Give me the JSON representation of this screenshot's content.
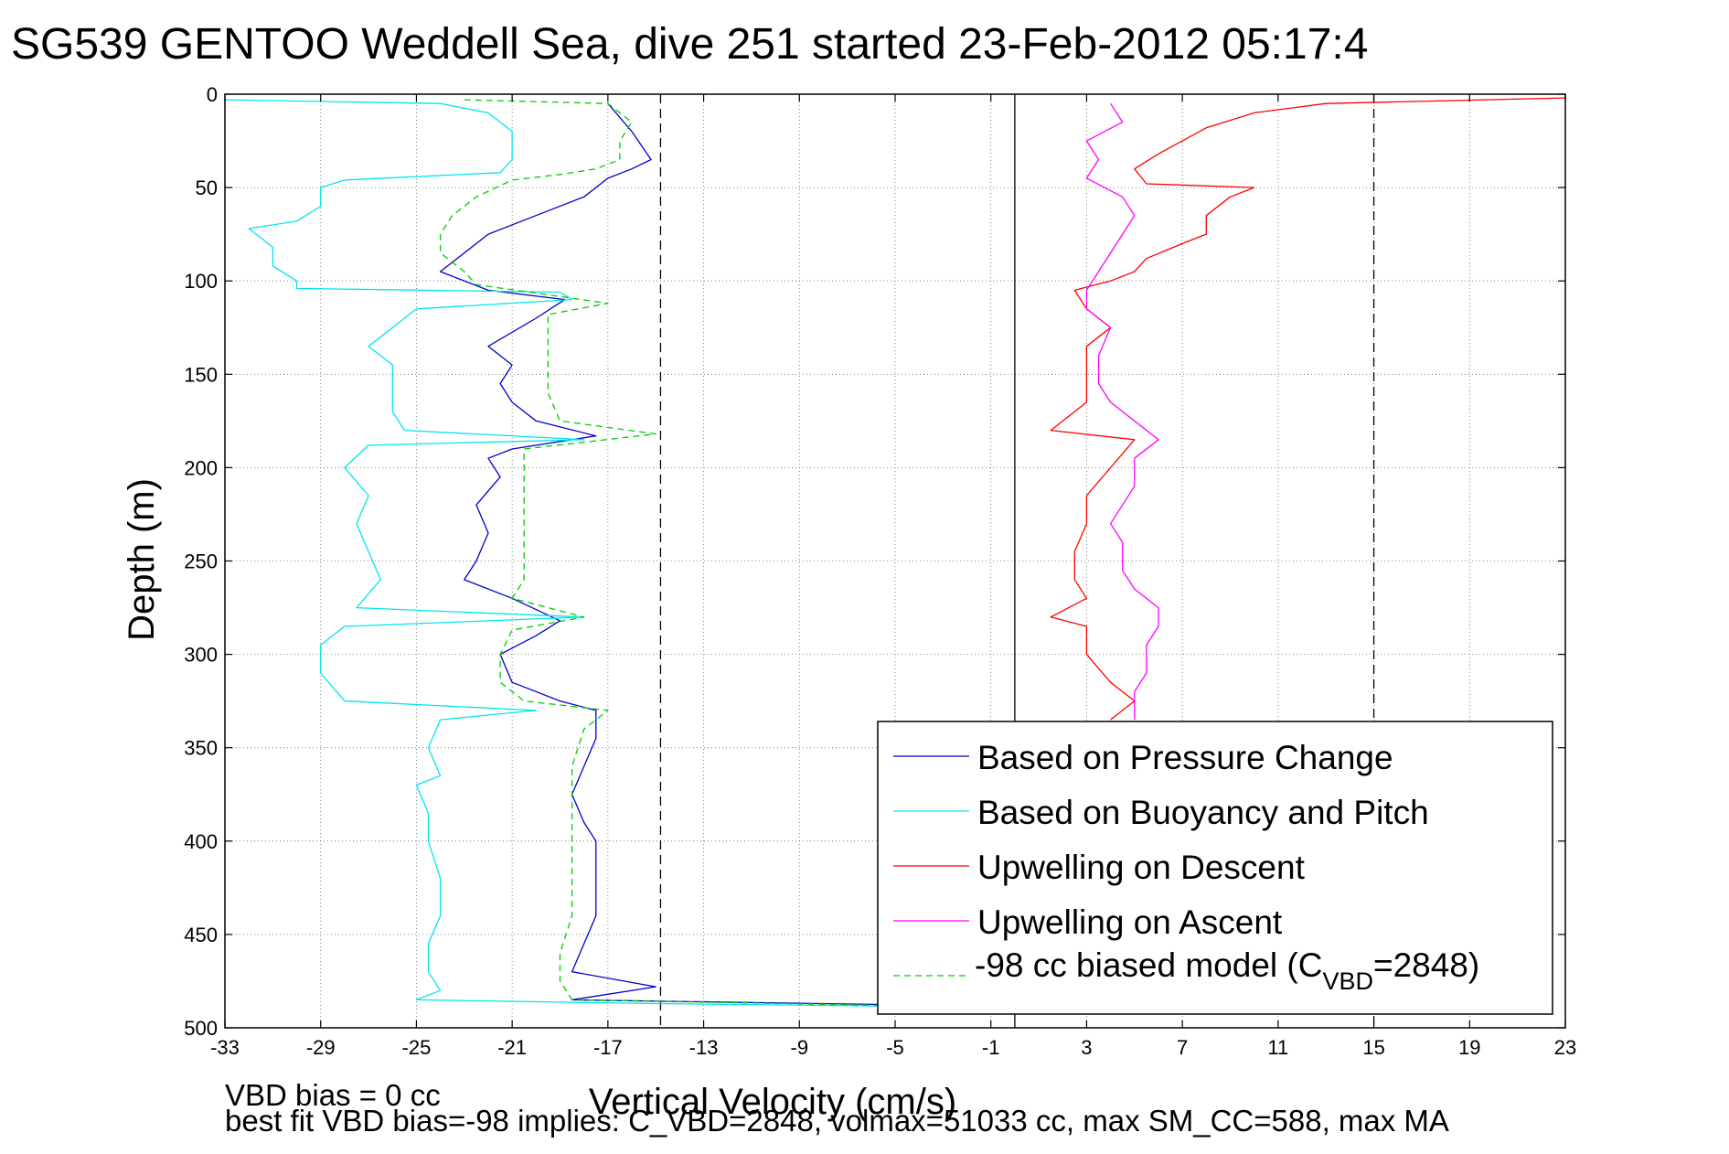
{
  "chart_data": {
    "type": "line",
    "title": "SG539 GENTOO Weddell Sea, dive 251 started 23-Feb-2012 05:17:4",
    "xlabel": "Vertical Velocity (cm/s)",
    "ylabel": "Depth (m)",
    "xlim": [
      -33,
      23
    ],
    "ylim": [
      0,
      500
    ],
    "y_reversed": true,
    "xticks": [
      -33,
      -29,
      -25,
      -21,
      -17,
      -13,
      -9,
      -5,
      -1,
      3,
      7,
      11,
      15,
      19,
      23
    ],
    "yticks": [
      0,
      50,
      100,
      150,
      200,
      250,
      300,
      350,
      400,
      450,
      500
    ],
    "grid": true,
    "legend_position": "bottom-right",
    "reference_lines": [
      {
        "x": -14.8,
        "style": "dashed",
        "color": "#000000"
      },
      {
        "x": 15,
        "style": "dashed",
        "color": "#000000"
      },
      {
        "x": 0,
        "style": "solid",
        "color": "#000000"
      }
    ],
    "series": [
      {
        "name": "Based on Pressure Change",
        "color": "#0000cc",
        "style": "solid",
        "points": [
          [
            -17,
            5
          ],
          [
            -16,
            20
          ],
          [
            -15.2,
            35
          ],
          [
            -16,
            40
          ],
          [
            -17,
            45
          ],
          [
            -18,
            55
          ],
          [
            -20,
            65
          ],
          [
            -22,
            75
          ],
          [
            -23,
            85
          ],
          [
            -24,
            95
          ],
          [
            -22,
            105
          ],
          [
            -18.8,
            110
          ],
          [
            -20,
            120
          ],
          [
            -22,
            135
          ],
          [
            -21,
            145
          ],
          [
            -21.5,
            155
          ],
          [
            -21,
            165
          ],
          [
            -20,
            175
          ],
          [
            -17.5,
            183
          ],
          [
            -21,
            190
          ],
          [
            -22,
            195
          ],
          [
            -21.5,
            205
          ],
          [
            -22.5,
            220
          ],
          [
            -22,
            235
          ],
          [
            -22.5,
            250
          ],
          [
            -23,
            260
          ],
          [
            -21,
            270
          ],
          [
            -19,
            282
          ],
          [
            -20,
            290
          ],
          [
            -21.5,
            300
          ],
          [
            -21,
            315
          ],
          [
            -19,
            325
          ],
          [
            -17.5,
            330
          ],
          [
            -17.5,
            345
          ],
          [
            -18,
            360
          ],
          [
            -18.5,
            375
          ],
          [
            -18,
            390
          ],
          [
            -17.5,
            400
          ],
          [
            -17.5,
            420
          ],
          [
            -17.5,
            440
          ],
          [
            -18,
            455
          ],
          [
            -18.5,
            470
          ],
          [
            -15,
            478
          ],
          [
            -18.5,
            485
          ],
          [
            -3,
            488
          ]
        ]
      },
      {
        "name": "Based on Buoyancy and Pitch",
        "color": "#00e5ee",
        "style": "solid",
        "points": [
          [
            -33,
            3
          ],
          [
            -24,
            5
          ],
          [
            -22,
            10
          ],
          [
            -21,
            20
          ],
          [
            -21,
            35
          ],
          [
            -21.5,
            42
          ],
          [
            -28,
            46
          ],
          [
            -29,
            50
          ],
          [
            -29,
            60
          ],
          [
            -30,
            68
          ],
          [
            -32,
            72
          ],
          [
            -31,
            82
          ],
          [
            -31,
            92
          ],
          [
            -30,
            100
          ],
          [
            -30,
            104
          ],
          [
            -19,
            106
          ],
          [
            -18.5,
            110
          ],
          [
            -25,
            115
          ],
          [
            -26,
            125
          ],
          [
            -27,
            135
          ],
          [
            -26,
            145
          ],
          [
            -26,
            160
          ],
          [
            -26,
            170
          ],
          [
            -25.5,
            180
          ],
          [
            -18,
            185
          ],
          [
            -27,
            188
          ],
          [
            -28,
            200
          ],
          [
            -27,
            215
          ],
          [
            -27.5,
            230
          ],
          [
            -27,
            245
          ],
          [
            -26.5,
            260
          ],
          [
            -27.5,
            275
          ],
          [
            -18,
            280
          ],
          [
            -28,
            285
          ],
          [
            -29,
            295
          ],
          [
            -29,
            310
          ],
          [
            -28,
            325
          ],
          [
            -20,
            330
          ],
          [
            -24,
            335
          ],
          [
            -24.5,
            350
          ],
          [
            -24,
            365
          ],
          [
            -25,
            370
          ],
          [
            -24.5,
            385
          ],
          [
            -24.5,
            400
          ],
          [
            -24,
            420
          ],
          [
            -24,
            440
          ],
          [
            -24.5,
            455
          ],
          [
            -24.5,
            470
          ],
          [
            -24,
            480
          ],
          [
            -25,
            485
          ],
          [
            -15,
            487
          ],
          [
            -1,
            489
          ]
        ]
      },
      {
        "name": "Upwelling on Descent",
        "color": "#ff0000",
        "style": "solid",
        "points": [
          [
            23,
            2
          ],
          [
            13,
            5
          ],
          [
            10,
            10
          ],
          [
            8,
            18
          ],
          [
            7,
            25
          ],
          [
            6,
            32
          ],
          [
            5,
            40
          ],
          [
            5.5,
            48
          ],
          [
            10,
            50
          ],
          [
            9,
            55
          ],
          [
            8,
            65
          ],
          [
            8,
            75
          ],
          [
            7,
            80
          ],
          [
            5.5,
            88
          ],
          [
            5,
            95
          ],
          [
            4,
            100
          ],
          [
            2.5,
            105
          ],
          [
            3,
            115
          ],
          [
            4,
            125
          ],
          [
            3,
            135
          ],
          [
            3,
            150
          ],
          [
            3,
            165
          ],
          [
            1.5,
            180
          ],
          [
            5,
            185
          ],
          [
            4,
            200
          ],
          [
            3,
            215
          ],
          [
            3,
            230
          ],
          [
            2.5,
            245
          ],
          [
            2.5,
            260
          ],
          [
            3,
            270
          ],
          [
            1.5,
            280
          ],
          [
            3,
            285
          ],
          [
            3,
            300
          ],
          [
            4,
            315
          ],
          [
            5,
            325
          ],
          [
            4,
            335
          ]
        ]
      },
      {
        "name": "Upwelling on Ascent",
        "color": "#ff00ff",
        "style": "solid",
        "points": [
          [
            4,
            5
          ],
          [
            4.5,
            15
          ],
          [
            3,
            25
          ],
          [
            3.5,
            35
          ],
          [
            3,
            45
          ],
          [
            4.5,
            55
          ],
          [
            5,
            65
          ],
          [
            4.5,
            75
          ],
          [
            4,
            85
          ],
          [
            3.5,
            95
          ],
          [
            3,
            105
          ],
          [
            3,
            115
          ],
          [
            4,
            125
          ],
          [
            3.5,
            140
          ],
          [
            3.5,
            155
          ],
          [
            4,
            165
          ],
          [
            5,
            175
          ],
          [
            6,
            185
          ],
          [
            5,
            195
          ],
          [
            5,
            210
          ],
          [
            4.5,
            220
          ],
          [
            4,
            230
          ],
          [
            4.5,
            240
          ],
          [
            4.5,
            255
          ],
          [
            5,
            265
          ],
          [
            6,
            275
          ],
          [
            6,
            285
          ],
          [
            5.5,
            295
          ],
          [
            5.5,
            310
          ],
          [
            5,
            320
          ],
          [
            5,
            335
          ]
        ]
      },
      {
        "name": "-98 cc biased model (C_VBD=2848)",
        "color": "#00cc00",
        "style": "dashed",
        "points": [
          [
            -23,
            3
          ],
          [
            -17,
            5
          ],
          [
            -16,
            15
          ],
          [
            -16.5,
            25
          ],
          [
            -16.5,
            35
          ],
          [
            -17.5,
            40
          ],
          [
            -19,
            43
          ],
          [
            -21,
            46
          ],
          [
            -22.5,
            55
          ],
          [
            -23.5,
            65
          ],
          [
            -24,
            75
          ],
          [
            -24,
            85
          ],
          [
            -23,
            95
          ],
          [
            -22.5,
            102
          ],
          [
            -17,
            112
          ],
          [
            -19.5,
            118
          ],
          [
            -19.5,
            130
          ],
          [
            -19.5,
            145
          ],
          [
            -19.5,
            160
          ],
          [
            -19,
            175
          ],
          [
            -15,
            182
          ],
          [
            -20.5,
            190
          ],
          [
            -20.5,
            200
          ],
          [
            -20.5,
            220
          ],
          [
            -20.5,
            240
          ],
          [
            -20.5,
            260
          ],
          [
            -21,
            270
          ],
          [
            -18,
            280
          ],
          [
            -21,
            287
          ],
          [
            -21.5,
            300
          ],
          [
            -21.5,
            315
          ],
          [
            -20.5,
            325
          ],
          [
            -17,
            330
          ],
          [
            -18,
            340
          ],
          [
            -18.5,
            360
          ],
          [
            -18.5,
            380
          ],
          [
            -18.5,
            400
          ],
          [
            -18.5,
            420
          ],
          [
            -18.5,
            440
          ],
          [
            -19,
            460
          ],
          [
            -19,
            475
          ],
          [
            -18.5,
            485
          ],
          [
            -1,
            489
          ]
        ]
      }
    ],
    "legend": [
      "Based on Pressure Change",
      "Based on Buoyancy and Pitch",
      "Upwelling on Descent",
      "Upwelling on Ascent",
      "-98 cc biased model (C",
      "VBD",
      "=2848)"
    ]
  },
  "footer": {
    "line1": "VBD bias = 0 cc",
    "line2": "best fit VBD bias=-98 implies: C_VBD=2848, volmax=51033 cc, max SM_CC=588, max MA"
  }
}
